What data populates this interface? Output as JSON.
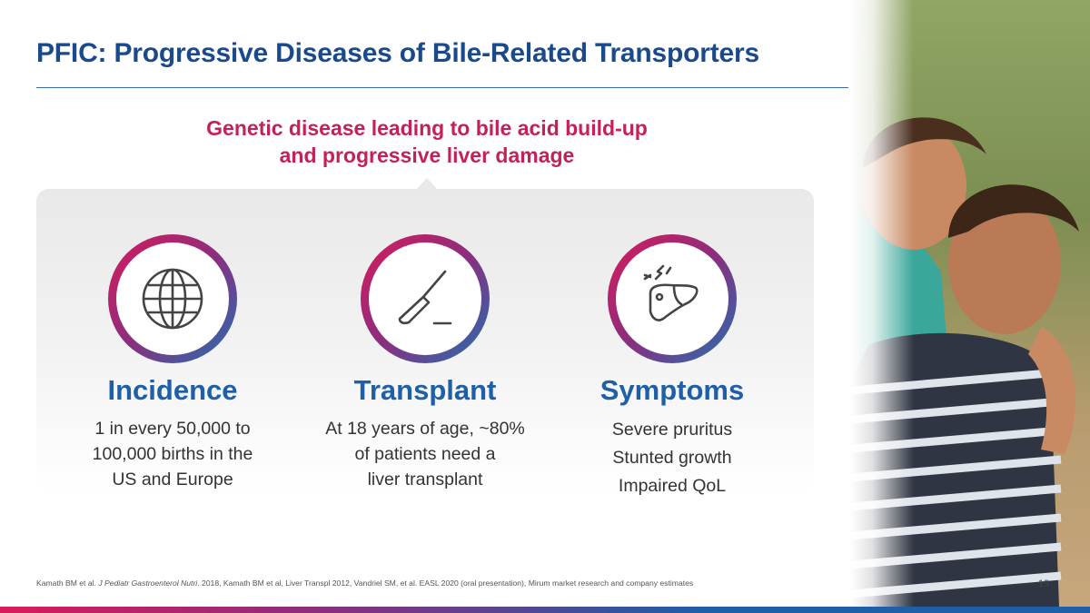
{
  "slide": {
    "title": "PFIC: Progressive Diseases of Bile-Related Transporters",
    "subtitle_line1": "Genetic disease leading to bile acid build-up",
    "subtitle_line2": "and progressive liver damage",
    "page_number": "19"
  },
  "columns": [
    {
      "icon": "globe-icon",
      "heading": "Incidence",
      "lines": [
        "1 in every 50,000 to",
        "100,000 births in the",
        "US and Europe"
      ]
    },
    {
      "icon": "scalpel-icon",
      "heading": "Transplant",
      "lines": [
        "At 18 years of age, ~80%",
        "of patients need a",
        "liver transplant"
      ]
    },
    {
      "icon": "liver-pain-icon",
      "heading": "Symptoms",
      "lines": [
        "Severe pruritus",
        "Stunted growth",
        "Impaired QoL"
      ]
    }
  ],
  "footnote": {
    "prefix": "Kamath BM et al. ",
    "journal": "J Pediatr Gastroenterol Nutri",
    "suffix": ". 2018, Kamath BM et al, Liver Transpl 2012, Vandriel SM, et al. EASL 2020 (oral presentation), Mirum market research and company estimates"
  },
  "colors": {
    "title_blue": "#1b4a8c",
    "accent_magenta": "#c4215c",
    "heading_blue": "#1e5fa8"
  }
}
